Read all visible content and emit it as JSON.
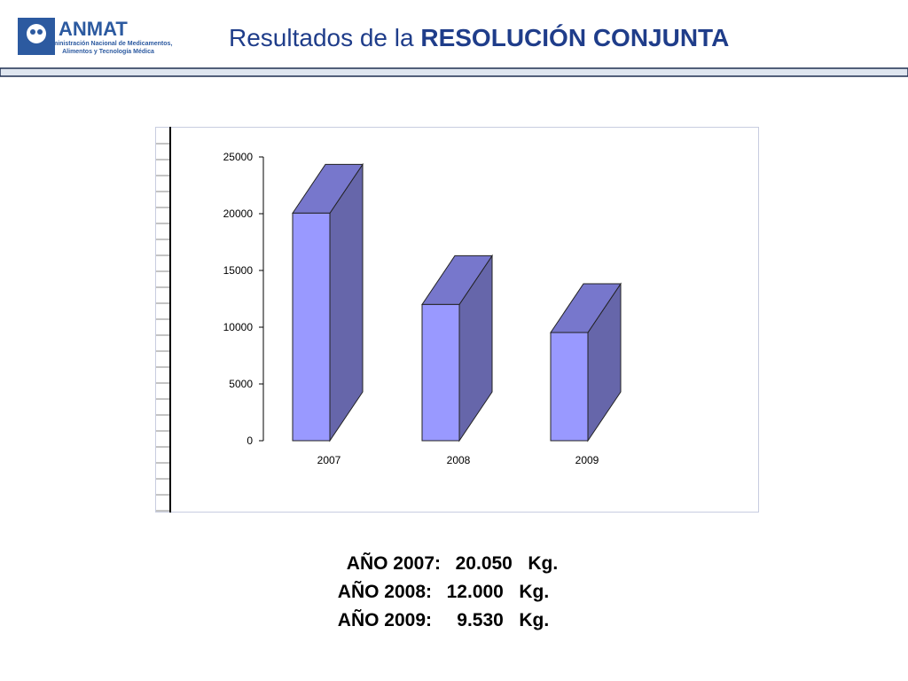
{
  "header": {
    "logo": "ANMAT",
    "logo_subtitle": [
      "Administración Nacional de Medicamentos,",
      "Alimentos y Tecnología Médica"
    ],
    "title": "Resultados de la",
    "title_bold": "RESOLUCIÓN CONJUNTA"
  },
  "chart_data": {
    "type": "bar3d",
    "categories": [
      "2007",
      "2008",
      "2009"
    ],
    "values": [
      20050,
      12000,
      9530
    ],
    "color": "#9999ff",
    "side_color": "#6666aa",
    "top_color": "#7777cc",
    "ylim": [
      0,
      25000
    ],
    "yticks": [
      0,
      5000,
      10000,
      15000,
      20000,
      25000
    ]
  },
  "summary": [
    {
      "label": "AÑO 2007:",
      "value": "20.050",
      "unit": "Kg."
    },
    {
      "label": "AÑO 2008:",
      "value": "12.000",
      "unit": "Kg."
    },
    {
      "label": "AÑO 2009:",
      "value": "9.530",
      "unit": "Kg."
    }
  ]
}
